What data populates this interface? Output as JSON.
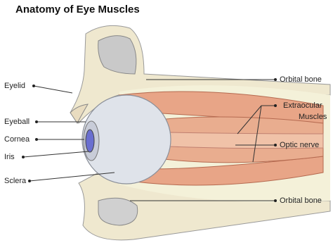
{
  "header": {
    "title": "Anatomy of Eye Muscles"
  },
  "labels_left": [
    "Eyelid",
    "Eyeball",
    "Cornea",
    "Iris",
    "Sclera"
  ],
  "labels_right": {
    "orbital_bone_top": "Orbital bone",
    "extraocular_muscles": [
      "Extraocular",
      "Muscles"
    ],
    "optic_nerve": "Optic nerve",
    "orbital_bone_bottom": "Orbital bone"
  }
}
